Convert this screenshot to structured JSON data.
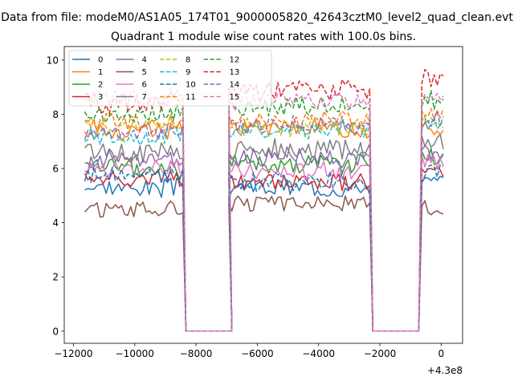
{
  "chart_data": {
    "type": "line",
    "suptitle": "Data from file: modeM0/AS1A05_174T01_9000005820_42643cztM0_level2_quad_clean.evt",
    "title": "Quadrant 1 module wise count rates with 100.0s bins.",
    "xlabel": "",
    "ylabel": "",
    "x_offset_label": "+4.3e8",
    "xlim": [
      -12300,
      700
    ],
    "ylim": [
      -0.45,
      10.5
    ],
    "x_ticks": [
      -12000,
      -10000,
      -8000,
      -6000,
      -4000,
      -2000,
      0
    ],
    "x_tick_labels": [
      "−12000",
      "−10000",
      "−8000",
      "−6000",
      "−4000",
      "−2000",
      "0"
    ],
    "y_ticks": [
      0,
      2,
      4,
      6,
      8,
      10
    ],
    "y_tick_labels": [
      "0",
      "2",
      "4",
      "6",
      "8",
      "10"
    ],
    "grid": false,
    "legend_position": "top-left",
    "legend_columns": 4,
    "bin_seconds": 100,
    "segments": [
      {
        "start": -11630,
        "count": 33
      },
      {
        "start": -6930,
        "count": 47
      },
      {
        "start": -630,
        "count": 8
      }
    ],
    "gaps": [
      {
        "start": -8330,
        "count": 16
      },
      {
        "start": -2230,
        "count": 16
      }
    ],
    "series": [
      {
        "name": "0",
        "color": "#1f77b4",
        "dash": "solid",
        "seg_means": [
          5.3,
          5.3,
          5.5
        ],
        "seg_means_ext": [
          5.3,
          5.4,
          5.6
        ],
        "amp": 0.3
      },
      {
        "name": "1",
        "color": "#ff7f0e",
        "dash": "solid",
        "seg_means": [
          7.4,
          7.5,
          7.4
        ],
        "seg_means_ext": [
          7.4,
          7.5,
          7.5
        ],
        "amp": 0.3
      },
      {
        "name": "2",
        "color": "#2ca02c",
        "dash": "solid",
        "seg_means": [
          6.0,
          6.2,
          6.5
        ],
        "seg_means_ext": [
          6.0,
          6.3,
          6.6
        ],
        "amp": 0.35
      },
      {
        "name": "3",
        "color": "#d62728",
        "dash": "solid",
        "seg_means": [
          5.6,
          5.5,
          5.8
        ],
        "seg_means_ext": [
          5.6,
          5.6,
          5.9
        ],
        "amp": 0.3
      },
      {
        "name": "4",
        "color": "#9467bd",
        "dash": "solid",
        "seg_means": [
          6.3,
          6.4,
          6.6
        ],
        "seg_means_ext": [
          6.3,
          6.5,
          6.7
        ],
        "amp": 0.35
      },
      {
        "name": "5",
        "color": "#8c564b",
        "dash": "solid",
        "seg_means": [
          4.5,
          4.7,
          4.5
        ],
        "seg_means_ext": [
          4.5,
          4.7,
          4.5
        ],
        "amp": 0.25
      },
      {
        "name": "6",
        "color": "#e377c2",
        "dash": "solid",
        "seg_means": [
          6.0,
          5.9,
          6.3
        ],
        "seg_means_ext": [
          6.0,
          6.0,
          6.4
        ],
        "amp": 0.3
      },
      {
        "name": "7",
        "color": "#7f7f7f",
        "dash": "solid",
        "seg_means": [
          6.6,
          6.7,
          6.9
        ],
        "seg_means_ext": [
          6.6,
          6.8,
          7.0
        ],
        "amp": 0.35
      },
      {
        "name": "8",
        "color": "#bcbd22",
        "dash": "dashed",
        "seg_means": [
          7.6,
          7.5,
          7.8
        ],
        "seg_means_ext": [
          7.6,
          7.6,
          7.9
        ],
        "amp": 0.3
      },
      {
        "name": "9",
        "color": "#17becf",
        "dash": "dashed",
        "seg_means": [
          7.2,
          7.4,
          7.6
        ],
        "seg_means_ext": [
          7.2,
          7.5,
          7.7
        ],
        "amp": 0.3
      },
      {
        "name": "10",
        "color": "#1f77b4",
        "dash": "dashed",
        "seg_means": [
          5.7,
          5.5,
          5.9
        ],
        "seg_means_ext": [
          5.7,
          5.6,
          6.0
        ],
        "amp": 0.3
      },
      {
        "name": "11",
        "color": "#ff7f0e",
        "dash": "dashed",
        "seg_means": [
          7.7,
          7.8,
          8.0
        ],
        "seg_means_ext": [
          7.7,
          7.9,
          8.1
        ],
        "amp": 0.3
      },
      {
        "name": "12",
        "color": "#2ca02c",
        "dash": "dashed",
        "seg_means": [
          8.0,
          8.3,
          8.5
        ],
        "seg_means_ext": [
          8.0,
          8.4,
          8.6
        ],
        "amp": 0.3
      },
      {
        "name": "13",
        "color": "#d62728",
        "dash": "dashed",
        "seg_means": [
          8.4,
          8.9,
          9.3
        ],
        "seg_means_ext": [
          8.4,
          9.0,
          9.4
        ],
        "amp": 0.35
      },
      {
        "name": "14",
        "color": "#9467bd",
        "dash": "dashed",
        "seg_means": [
          7.3,
          7.6,
          7.8
        ],
        "seg_means_ext": [
          7.3,
          7.7,
          7.9
        ],
        "amp": 0.3
      },
      {
        "name": "15",
        "color": "#e377c2",
        "dash": "dashed",
        "seg_means": [
          8.6,
          8.5,
          8.7
        ],
        "seg_means_ext": [
          8.6,
          8.6,
          8.8
        ],
        "amp": 0.3
      }
    ]
  }
}
